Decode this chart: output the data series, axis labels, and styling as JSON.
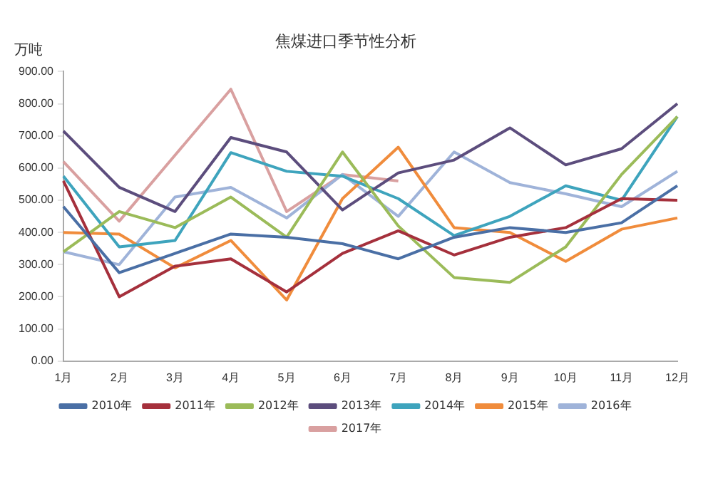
{
  "chart_data": {
    "type": "line",
    "title": "焦煤进口季节性分析",
    "ylabel": "万吨",
    "categories": [
      "1月",
      "2月",
      "3月",
      "4月",
      "5月",
      "6月",
      "7月",
      "8月",
      "9月",
      "10月",
      "11月",
      "12月"
    ],
    "series": [
      {
        "name": "2010年",
        "color": "#4a6fa5",
        "values": [
          480,
          275,
          335,
          395,
          385,
          365,
          318,
          385,
          415,
          400,
          430,
          545
        ]
      },
      {
        "name": "2011年",
        "color": "#a5303c",
        "values": [
          560,
          200,
          295,
          318,
          215,
          335,
          405,
          330,
          385,
          415,
          505,
          500
        ]
      },
      {
        "name": "2012年",
        "color": "#9bbb59",
        "values": [
          340,
          465,
          415,
          510,
          385,
          650,
          420,
          260,
          245,
          355,
          580,
          760
        ]
      },
      {
        "name": "2013年",
        "color": "#5c4d7d",
        "values": [
          715,
          540,
          465,
          695,
          650,
          470,
          585,
          625,
          725,
          610,
          660,
          800
        ]
      },
      {
        "name": "2014年",
        "color": "#3ea4bd",
        "values": [
          575,
          355,
          375,
          648,
          590,
          575,
          505,
          390,
          450,
          545,
          500,
          760
        ]
      },
      {
        "name": "2015年",
        "color": "#f08c3c",
        "values": [
          400,
          395,
          290,
          375,
          190,
          505,
          665,
          415,
          400,
          310,
          410,
          445
        ]
      },
      {
        "name": "2016年",
        "color": "#9fb3d9",
        "values": [
          340,
          300,
          510,
          540,
          445,
          580,
          450,
          650,
          555,
          520,
          480,
          590
        ]
      },
      {
        "name": "2017年",
        "color": "#d9a0a0",
        "values": [
          620,
          435,
          640,
          845,
          465,
          580,
          560,
          null,
          null,
          null,
          null,
          null
        ]
      }
    ],
    "ylim": [
      0,
      900
    ],
    "yticks": [
      {
        "value": 0,
        "label": "0.00"
      },
      {
        "value": 100,
        "label": "100.00"
      },
      {
        "value": 200,
        "label": "200.00"
      },
      {
        "value": 300,
        "label": "300.00"
      },
      {
        "value": 400,
        "label": "400.00"
      },
      {
        "value": 500,
        "label": "500.00"
      },
      {
        "value": 600,
        "label": "600.00"
      },
      {
        "value": 700,
        "label": "700.00"
      },
      {
        "value": 800,
        "label": "800.00"
      },
      {
        "value": 900,
        "label": "900.00"
      }
    ],
    "grid": false,
    "legend": "bottom",
    "marker": "none",
    "line_style": "solid"
  }
}
